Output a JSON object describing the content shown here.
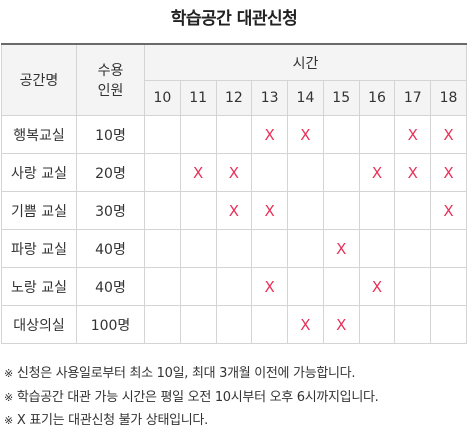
{
  "title": "학습공간 대관신청",
  "table": {
    "header_room": "공간명",
    "header_capacity_line1": "수용",
    "header_capacity_line2": "인원",
    "header_time": "시간",
    "hours": [
      "10",
      "11",
      "12",
      "13",
      "14",
      "15",
      "16",
      "17",
      "18"
    ],
    "mark_symbol": "X",
    "mark_color": "#e8325a",
    "rows": [
      {
        "room": "행복교실",
        "capacity": "10명",
        "booked": [
          false,
          false,
          false,
          true,
          true,
          false,
          false,
          true,
          true
        ]
      },
      {
        "room": "사랑 교실",
        "capacity": "20명",
        "booked": [
          false,
          true,
          true,
          false,
          false,
          false,
          true,
          true,
          true
        ]
      },
      {
        "room": "기쁨 교실",
        "capacity": "30명",
        "booked": [
          false,
          false,
          true,
          true,
          false,
          false,
          false,
          false,
          true
        ]
      },
      {
        "room": "파랑 교실",
        "capacity": "40명",
        "booked": [
          false,
          false,
          false,
          false,
          false,
          true,
          false,
          false,
          false
        ]
      },
      {
        "room": "노랑 교실",
        "capacity": "40명",
        "booked": [
          false,
          false,
          false,
          true,
          false,
          false,
          true,
          false,
          false
        ]
      },
      {
        "room": "대상의실",
        "capacity": "100명",
        "booked": [
          false,
          false,
          false,
          false,
          true,
          true,
          false,
          false,
          false
        ]
      }
    ]
  },
  "notes": [
    "신청은 사용일로부터 최소 10일, 최대 3개월 이전에 가능합니다.",
    "학습공간 대관 가능 시간은 평일 오전 10시부터 오후 6시까지입니다.",
    "X 표기는 대관신청 불가 상태입니다."
  ],
  "note_bullet": "※"
}
